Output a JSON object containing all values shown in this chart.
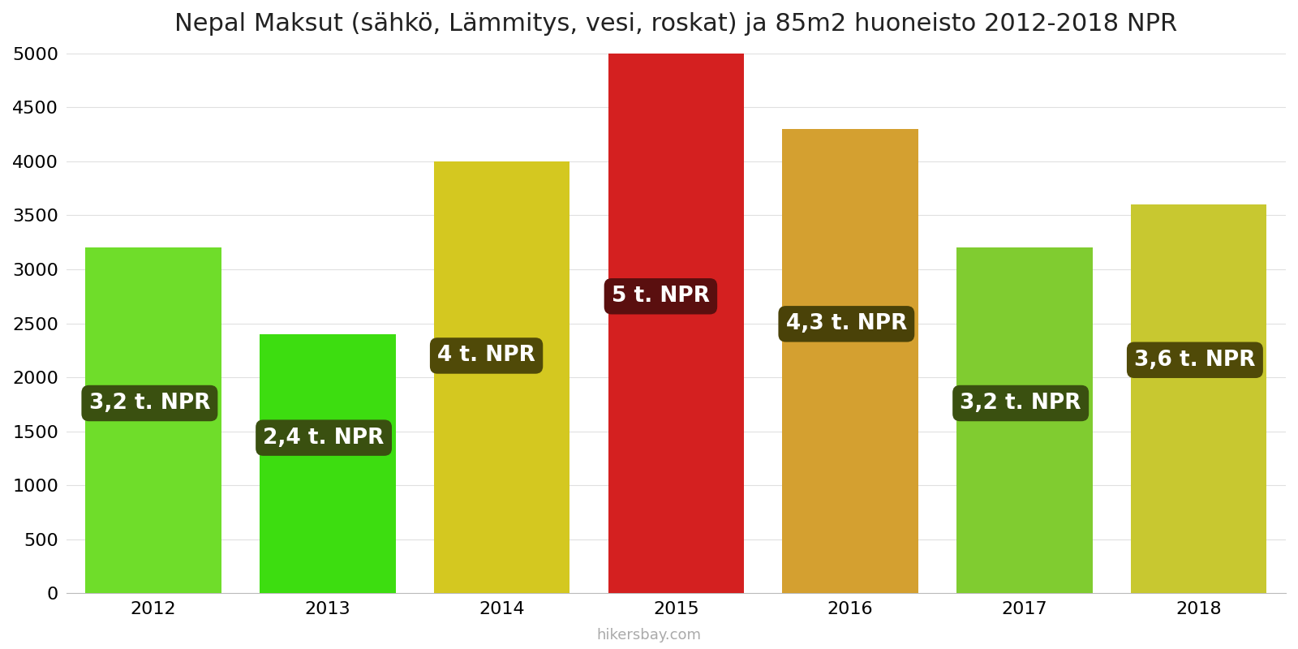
{
  "title": "Nepal Maksut (sähkö, Lämmitys, vesi, roskat) ja 85m2 huoneisto 2012-2018 NPR",
  "years": [
    2012,
    2013,
    2014,
    2015,
    2016,
    2017,
    2018
  ],
  "values": [
    3200,
    2400,
    4000,
    5000,
    4300,
    3200,
    3600
  ],
  "labels": [
    "3,2 t. NPR",
    "2,4 t. NPR",
    "4 t. NPR",
    "5 t. NPR",
    "4,3 t. NPR",
    "3,2 t. NPR",
    "3,6 t. NPR"
  ],
  "bar_colors": [
    "#6fdd2a",
    "#3ddd10",
    "#d4c820",
    "#d42020",
    "#d4a030",
    "#80cc30",
    "#c8c830"
  ],
  "label_bg_colors": [
    "#3a5010",
    "#3a5010",
    "#504a08",
    "#5a0f0f",
    "#4a4208",
    "#3a5010",
    "#504a08"
  ],
  "label_y_fracs": [
    0.55,
    0.6,
    0.55,
    0.55,
    0.58,
    0.55,
    0.6
  ],
  "ylim": [
    0,
    5000
  ],
  "yticks": [
    0,
    500,
    1000,
    1500,
    2000,
    2500,
    3000,
    3500,
    4000,
    4500,
    5000
  ],
  "footer": "hikersbay.com",
  "background_color": "#ffffff",
  "title_fontsize": 22,
  "label_fontsize": 19,
  "tick_fontsize": 16,
  "footer_fontsize": 13,
  "bar_width": 0.78
}
